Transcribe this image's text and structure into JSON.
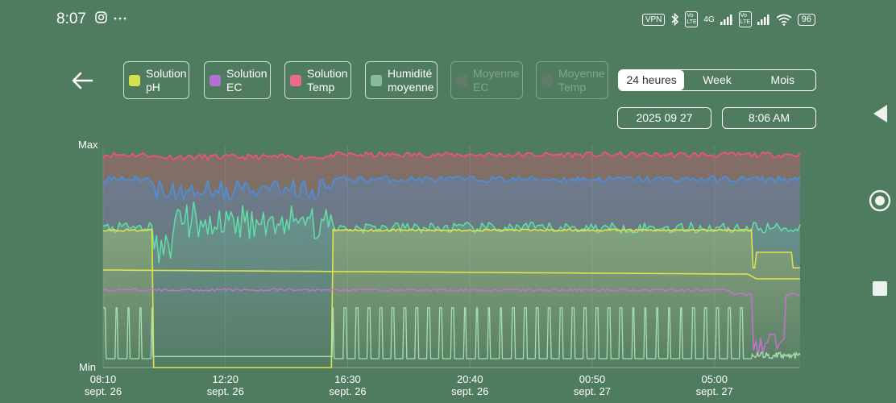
{
  "status_bar": {
    "time": "8:07",
    "left_icons": [
      "instagram-icon",
      "more-icon"
    ],
    "vpn": "VPN",
    "volte1": "Vo LTE",
    "network": "4G",
    "volte2": "Vo LTE",
    "battery": "96"
  },
  "legend": [
    {
      "line1": "Solution",
      "line2": "pH",
      "color": "#d6e04a",
      "enabled": true
    },
    {
      "line1": "Solution",
      "line2": "EC",
      "color": "#b46fd2",
      "enabled": true
    },
    {
      "line1": "Solution",
      "line2": "Temp",
      "color": "#ee6a8c",
      "enabled": true
    },
    {
      "line1": "Humidité",
      "line2": "moyenne",
      "color": "#86bd95",
      "enabled": true
    },
    {
      "line1": "Moyenne",
      "line2": "EC",
      "color": "#7a7a7a",
      "enabled": false
    },
    {
      "line1": "Moyenne",
      "line2": "Temp",
      "color": "#7a7a7a",
      "enabled": false
    }
  ],
  "range_tabs": [
    {
      "label": "24 heures",
      "active": true
    },
    {
      "label": "Week",
      "active": false
    },
    {
      "label": "Mois",
      "active": false
    }
  ],
  "date_picker": "2025 09 27",
  "time_picker": "8:06 AM",
  "chart_data": {
    "type": "line",
    "ylabel_max": "Max",
    "ylabel_min": "Min",
    "x_ticks": [
      {
        "time": "08:10",
        "date": "sept. 26"
      },
      {
        "time": "12:20",
        "date": "sept. 26"
      },
      {
        "time": "16:30",
        "date": "sept. 26"
      },
      {
        "time": "20:40",
        "date": "sept. 26"
      },
      {
        "time": "00:50",
        "date": "sept. 27"
      },
      {
        "time": "05:00",
        "date": "sept. 27"
      }
    ],
    "x_range": [
      "08:10 sept. 26",
      "08:06 sept. 27"
    ],
    "y_scale": "normalized 0 (Min) to 1 (Max)",
    "series_colors": {
      "temp": "#ee5478",
      "ec_blue": "#4d8fdb",
      "humidity": "#5fe0a6",
      "ph": "#e3e24a",
      "ec": "#c96fd3",
      "pump": "#a5dfb0"
    },
    "series_levels": {
      "temp": 0.96,
      "ec_blue": 0.85,
      "humidity": 0.63,
      "ph_high": 0.62,
      "ph_low": 0.0,
      "ph_mid": 0.42,
      "ec": 0.35,
      "pump_peak": 0.27,
      "pump_base": 0.04
    },
    "grid": true
  }
}
